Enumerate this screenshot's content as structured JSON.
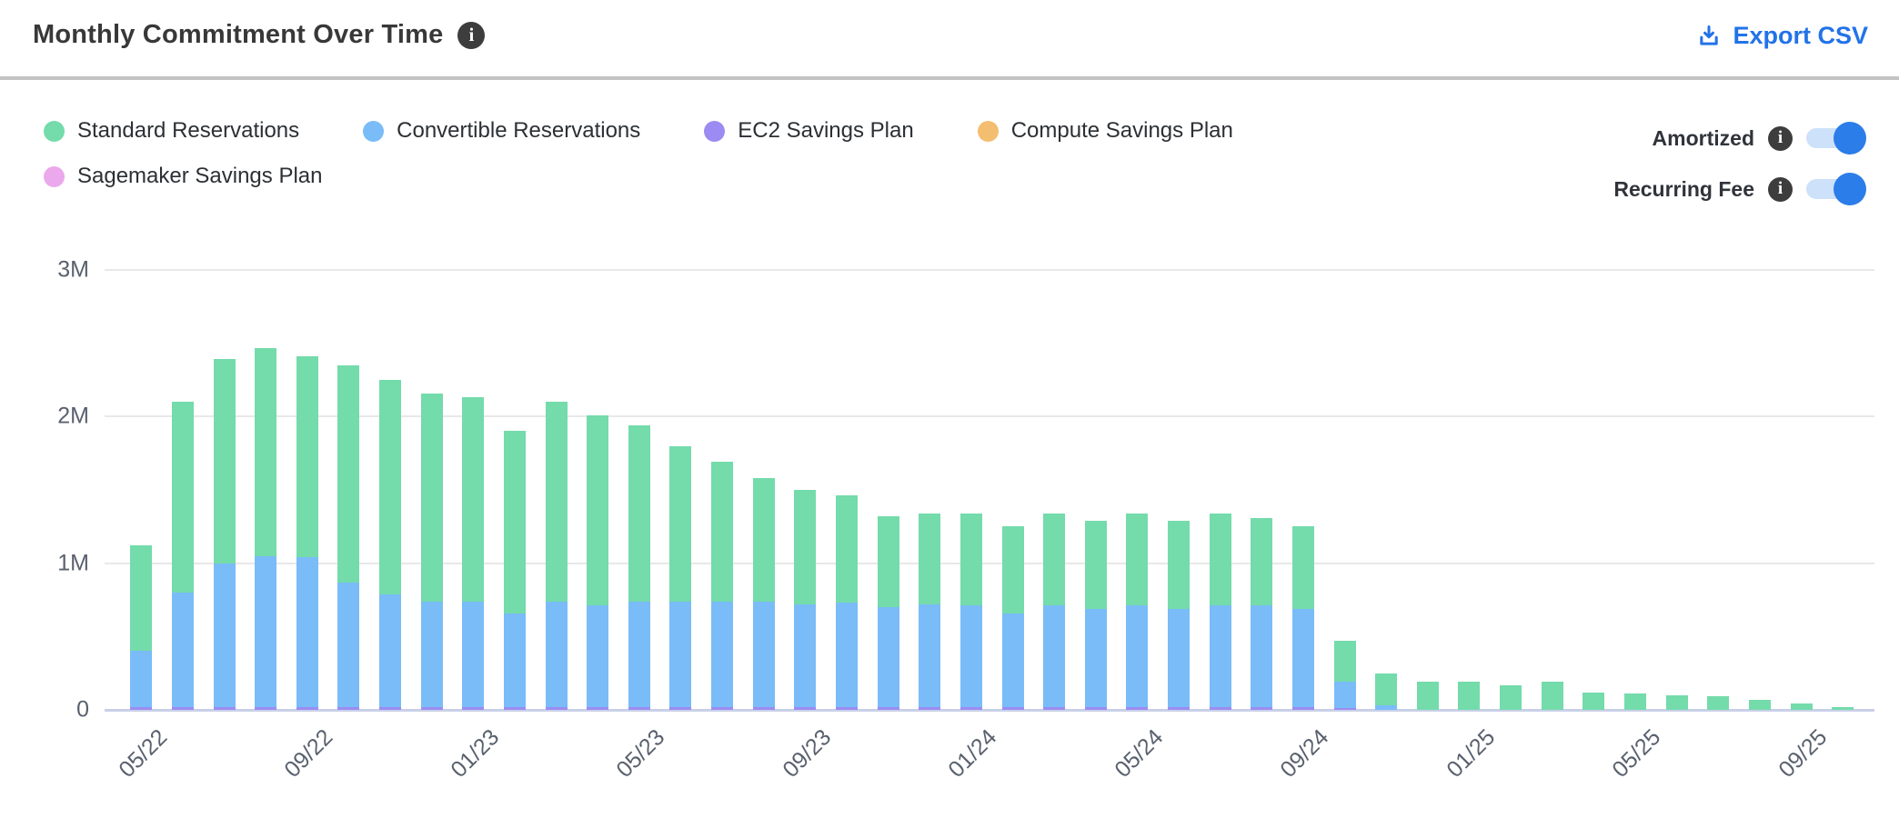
{
  "header": {
    "title": "Monthly Commitment Over Time",
    "export_label": "Export CSV"
  },
  "legend": [
    {
      "label": "Standard Reservations",
      "color": "#74dbab"
    },
    {
      "label": "Convertible Reservations",
      "color": "#79bcf8"
    },
    {
      "label": "EC2 Savings Plan",
      "color": "#9c8bf2"
    },
    {
      "label": "Compute Savings Plan",
      "color": "#f4be70"
    },
    {
      "label": "Sagemaker Savings Plan",
      "color": "#eca8ec"
    }
  ],
  "toggles": [
    {
      "label": "Amortized",
      "state": "on"
    },
    {
      "label": "Recurring Fee",
      "state": "on"
    }
  ],
  "colors": {
    "accent_blue": "#2273e8",
    "toggle_track": "#cde1fa",
    "toggle_knob": "#2b7de9",
    "info_badge": "#3d3d3d",
    "gridline": "#e8e8e8",
    "zero_line": "#c9d0e8",
    "axis_text": "#59616e"
  },
  "chart_data": {
    "type": "bar",
    "stacked": true,
    "title": "Monthly Commitment Over Time",
    "values_unit": "millions (M)",
    "ylim": [
      0,
      3
    ],
    "yticks": [
      "0",
      "1M",
      "2M",
      "3M"
    ],
    "x": [
      "05/22",
      "06/22",
      "07/22",
      "08/22",
      "09/22",
      "10/22",
      "11/22",
      "12/22",
      "01/23",
      "02/23",
      "03/23",
      "04/23",
      "05/23",
      "06/23",
      "07/23",
      "08/23",
      "09/23",
      "10/23",
      "11/23",
      "12/23",
      "01/24",
      "02/24",
      "03/24",
      "04/24",
      "05/24",
      "06/24",
      "07/24",
      "08/24",
      "09/24",
      "10/24",
      "11/24",
      "12/24",
      "01/25",
      "02/25",
      "03/25",
      "04/25",
      "05/25",
      "06/25",
      "07/25",
      "08/25",
      "09/25",
      "10/25"
    ],
    "x_tick_labels_shown": [
      "05/22",
      "09/22",
      "01/23",
      "05/23",
      "09/23",
      "01/24",
      "05/24",
      "09/24",
      "01/25",
      "05/25",
      "09/25"
    ],
    "x_tick_every": 4,
    "legend_position": "top-left",
    "series": [
      {
        "name": "EC2 Savings Plan",
        "color": "#9c8bf2",
        "values": [
          0.02,
          0.02,
          0.02,
          0.02,
          0.02,
          0.02,
          0.02,
          0.02,
          0.02,
          0.02,
          0.02,
          0.02,
          0.02,
          0.02,
          0.02,
          0.02,
          0.02,
          0.02,
          0.02,
          0.02,
          0.02,
          0.02,
          0.02,
          0.02,
          0.02,
          0.02,
          0.02,
          0.02,
          0.02,
          0.01,
          0,
          0,
          0,
          0,
          0,
          0,
          0,
          0,
          0,
          0,
          0,
          0
        ]
      },
      {
        "name": "Convertible Reservations",
        "color": "#79bcf8",
        "values": [
          0.38,
          0.78,
          0.98,
          1.03,
          1.02,
          0.85,
          0.77,
          0.72,
          0.72,
          0.64,
          0.72,
          0.69,
          0.72,
          0.72,
          0.72,
          0.72,
          0.7,
          0.71,
          0.68,
          0.7,
          0.69,
          0.64,
          0.69,
          0.67,
          0.69,
          0.67,
          0.69,
          0.69,
          0.67,
          0.18,
          0.03,
          0,
          0,
          0,
          0,
          0,
          0,
          0,
          0,
          0,
          0,
          0
        ]
      },
      {
        "name": "Standard Reservations",
        "color": "#74dbab",
        "values": [
          0.72,
          1.3,
          1.39,
          1.42,
          1.37,
          1.48,
          1.46,
          1.42,
          1.39,
          1.24,
          1.36,
          1.3,
          1.2,
          1.06,
          0.95,
          0.84,
          0.78,
          0.73,
          0.62,
          0.62,
          0.63,
          0.59,
          0.63,
          0.6,
          0.63,
          0.6,
          0.63,
          0.6,
          0.56,
          0.28,
          0.22,
          0.19,
          0.19,
          0.17,
          0.19,
          0.12,
          0.11,
          0.1,
          0.09,
          0.07,
          0.045,
          0.02
        ]
      },
      {
        "name": "Compute Savings Plan",
        "color": "#f4be70",
        "values": [
          0,
          0,
          0,
          0,
          0,
          0,
          0,
          0,
          0,
          0,
          0,
          0,
          0,
          0,
          0,
          0,
          0,
          0,
          0,
          0,
          0,
          0,
          0,
          0,
          0,
          0,
          0,
          0,
          0,
          0,
          0,
          0,
          0,
          0,
          0,
          0,
          0,
          0,
          0,
          0,
          0,
          0
        ]
      },
      {
        "name": "Sagemaker Savings Plan",
        "color": "#eca8ec",
        "values": [
          0,
          0,
          0,
          0,
          0,
          0,
          0,
          0,
          0,
          0,
          0,
          0,
          0,
          0,
          0,
          0,
          0,
          0,
          0,
          0,
          0,
          0,
          0,
          0,
          0,
          0,
          0,
          0,
          0,
          0,
          0,
          0,
          0,
          0,
          0,
          0,
          0,
          0,
          0,
          0,
          0,
          0
        ]
      }
    ]
  }
}
